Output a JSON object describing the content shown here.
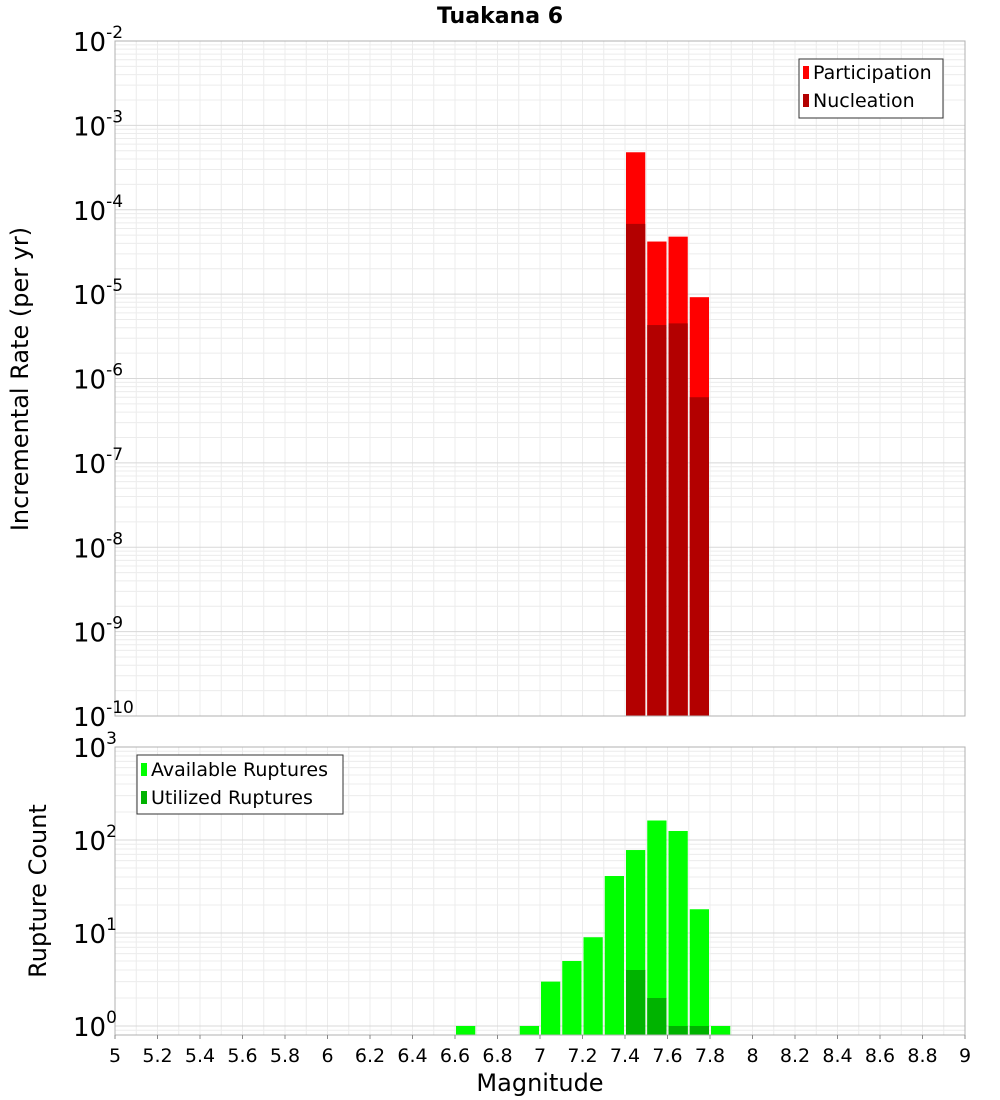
{
  "chart_data": [
    {
      "type": "bar",
      "title": "Tuakana 6",
      "xlabel": "",
      "ylabel": "Incremental Rate (per yr)",
      "yscale": "log",
      "ylim": [
        1e-10,
        0.01
      ],
      "xlim": [
        5,
        9
      ],
      "ytick_exponents": [
        "-10",
        "-9",
        "-8",
        "-7",
        "-6",
        "-5",
        "-4",
        "-3",
        "-2"
      ],
      "bin_width": 0.1,
      "legend": {
        "position": "top-right",
        "entries": [
          {
            "name": "Participation",
            "color": "#ff0000"
          },
          {
            "name": "Nucleation",
            "color": "#b30000"
          }
        ]
      },
      "series": [
        {
          "name": "Participation",
          "color": "#ff0000",
          "x": [
            7.45,
            7.55,
            7.65,
            7.75
          ],
          "values": [
            0.00048,
            4.2e-05,
            4.8e-05,
            9.2e-06
          ]
        },
        {
          "name": "Nucleation",
          "color": "#b30000",
          "x": [
            7.45,
            7.55,
            7.65,
            7.75
          ],
          "values": [
            6.8e-05,
            4.3e-06,
            4.5e-06,
            6e-07
          ]
        }
      ]
    },
    {
      "type": "bar",
      "title": "",
      "xlabel": "Magnitude",
      "ylabel": "Rupture Count",
      "yscale": "log",
      "ylim": [
        0.8,
        1000
      ],
      "xlim": [
        5,
        9
      ],
      "ytick_exponents": [
        "0",
        "1",
        "2",
        "3"
      ],
      "xticks": [
        "5",
        "5.2",
        "5.4",
        "5.6",
        "5.8",
        "6",
        "6.2",
        "6.4",
        "6.6",
        "6.8",
        "7",
        "7.2",
        "7.4",
        "7.6",
        "7.8",
        "8",
        "8.2",
        "8.4",
        "8.6",
        "8.8",
        "9"
      ],
      "bin_width": 0.1,
      "legend": {
        "position": "top-left",
        "entries": [
          {
            "name": "Available Ruptures",
            "color": "#00ff00"
          },
          {
            "name": "Utilized Ruptures",
            "color": "#00b300"
          }
        ]
      },
      "series": [
        {
          "name": "Available Ruptures",
          "color": "#00ff00",
          "x": [
            6.65,
            6.95,
            7.05,
            7.15,
            7.25,
            7.35,
            7.45,
            7.55,
            7.65,
            7.75,
            7.85
          ],
          "values": [
            1,
            1,
            3,
            5,
            9,
            41,
            78,
            162,
            125,
            18,
            1
          ]
        },
        {
          "name": "Utilized Ruptures",
          "color": "#00b300",
          "x": [
            7.45,
            7.55,
            7.65,
            7.75
          ],
          "values": [
            4,
            2,
            1,
            1
          ]
        }
      ]
    }
  ]
}
